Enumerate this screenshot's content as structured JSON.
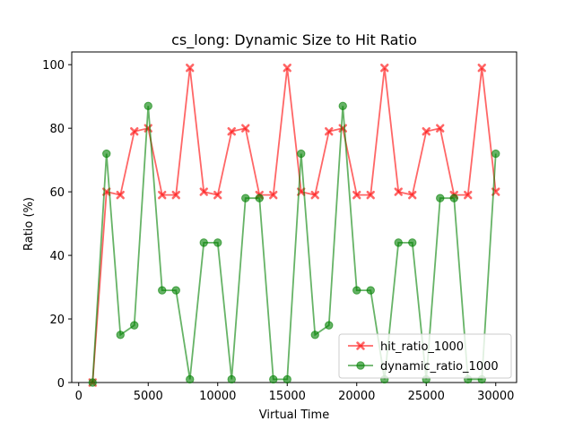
{
  "chart_data": {
    "type": "line",
    "title": "cs_long: Dynamic Size to Hit Ratio",
    "xlabel": "Virtual Time",
    "ylabel": "Ratio (%)",
    "xlim": [
      -500,
      31500
    ],
    "ylim": [
      0,
      104
    ],
    "xticks": [
      0,
      5000,
      10000,
      15000,
      20000,
      25000,
      30000
    ],
    "yticks": [
      0,
      20,
      40,
      60,
      80,
      100
    ],
    "grid": false,
    "legend_position": "lower-right",
    "x": [
      1000,
      2000,
      3000,
      4000,
      5000,
      6000,
      7000,
      8000,
      9000,
      10000,
      11000,
      12000,
      13000,
      14000,
      15000,
      16000,
      17000,
      18000,
      19000,
      20000,
      21000,
      22000,
      23000,
      24000,
      25000,
      26000,
      27000,
      28000,
      29000,
      30000
    ],
    "series": [
      {
        "name": "hit_ratio_1000",
        "color": "#ff0000",
        "marker": "x",
        "values": [
          0,
          60,
          59,
          79,
          80,
          59,
          59,
          99,
          60,
          59,
          79,
          80,
          59,
          59,
          99,
          60,
          59,
          79,
          80,
          59,
          59,
          99,
          60,
          59,
          79,
          80,
          59,
          59,
          99,
          60
        ]
      },
      {
        "name": "dynamic_ratio_1000",
        "color": "#008000",
        "marker": "o",
        "values": [
          0,
          72,
          15,
          18,
          87,
          29,
          29,
          1,
          44,
          44,
          1,
          58,
          58,
          1,
          1,
          72,
          15,
          18,
          87,
          29,
          29,
          1,
          44,
          44,
          1,
          58,
          58,
          1,
          1,
          72
        ]
      }
    ]
  }
}
